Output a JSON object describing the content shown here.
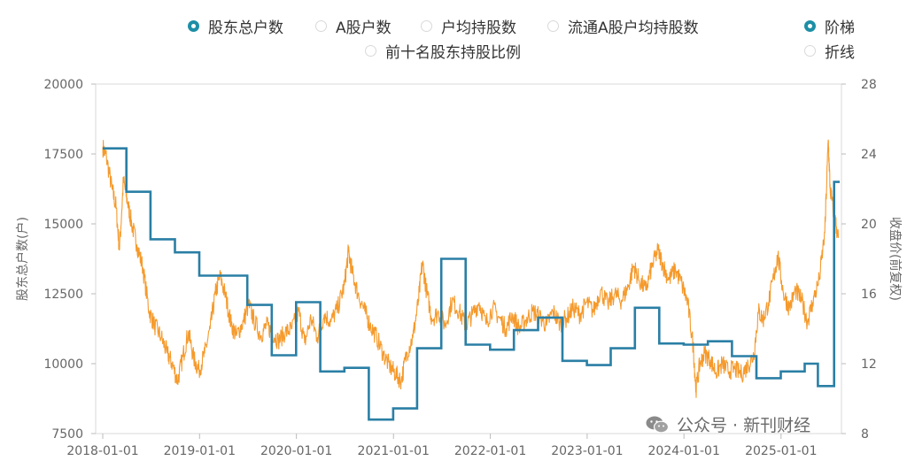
{
  "legend": {
    "series_options": [
      {
        "label": "股东总户数",
        "selected": true
      },
      {
        "label": "A股户数",
        "selected": false
      },
      {
        "label": "户均持股数",
        "selected": false
      },
      {
        "label": "流通A股户均持股数",
        "selected": false
      },
      {
        "label": "前十名股东持股比例",
        "selected": false
      }
    ],
    "style_options": [
      {
        "label": "阶梯",
        "selected": true
      },
      {
        "label": "折线",
        "selected": false
      }
    ]
  },
  "watermark": {
    "text": "公众号 · 新刊财经",
    "icon": "wechat-icon"
  },
  "colors": {
    "holders": "#2a7fa5",
    "price": "#f59a2c",
    "accent": "#1d8fa6"
  },
  "chart_data": {
    "type": "line",
    "xlabel": "",
    "ylabel_left": "股东总户数(户)",
    "ylabel_right": "收盘价(前复权)",
    "x_ticks": [
      "2018-01-01",
      "2019-01-01",
      "2020-01-01",
      "2021-01-01",
      "2022-01-01",
      "2023-01-01",
      "2024-01-01",
      "2025-01-01"
    ],
    "xlim": [
      "2018-01-01",
      "2025-08-10"
    ],
    "y_left": {
      "ylim": [
        7500,
        20000
      ],
      "ticks": [
        "7500",
        "10000",
        "12500",
        "15000",
        "17500",
        "20000"
      ]
    },
    "y_right": {
      "ylim": [
        8,
        28
      ],
      "ticks": [
        "8",
        "12",
        "16",
        "20",
        "24",
        "28"
      ]
    },
    "grid": false,
    "series": [
      {
        "name": "股东总户数",
        "axis": "left",
        "style": "step",
        "points": [
          [
            "2018-01-01",
            17700
          ],
          [
            "2018-03-31",
            16150
          ],
          [
            "2018-06-30",
            14450
          ],
          [
            "2018-09-30",
            13980
          ],
          [
            "2018-12-31",
            13150
          ],
          [
            "2019-06-30",
            12100
          ],
          [
            "2019-09-30",
            10300
          ],
          [
            "2019-12-31",
            12200
          ],
          [
            "2020-03-31",
            9720
          ],
          [
            "2020-06-30",
            9850
          ],
          [
            "2020-09-30",
            8000
          ],
          [
            "2020-12-31",
            8400
          ],
          [
            "2021-03-31",
            10550
          ],
          [
            "2021-06-30",
            13750
          ],
          [
            "2021-09-30",
            10680
          ],
          [
            "2021-12-31",
            10500
          ],
          [
            "2022-03-31",
            11200
          ],
          [
            "2022-06-30",
            11650
          ],
          [
            "2022-09-30",
            10100
          ],
          [
            "2022-12-31",
            9950
          ],
          [
            "2023-03-31",
            10550
          ],
          [
            "2023-06-30",
            12000
          ],
          [
            "2023-09-30",
            10720
          ],
          [
            "2023-12-31",
            10680
          ],
          [
            "2024-03-31",
            10800
          ],
          [
            "2024-06-30",
            10270
          ],
          [
            "2024-09-30",
            9480
          ],
          [
            "2024-12-31",
            9720
          ],
          [
            "2025-03-31",
            10000
          ],
          [
            "2025-05-20",
            9200
          ],
          [
            "2025-07-20",
            16500
          ],
          [
            "2025-08-10",
            16500
          ]
        ]
      },
      {
        "name": "收盘价(前复权)",
        "axis": "right",
        "style": "line",
        "points": [
          [
            "2018-01-01",
            24.4
          ],
          [
            "2018-01-15",
            23.8
          ],
          [
            "2018-02-05",
            22.0
          ],
          [
            "2018-02-20",
            21.0
          ],
          [
            "2018-03-05",
            18.5
          ],
          [
            "2018-03-20",
            22.5
          ],
          [
            "2018-04-05",
            21.2
          ],
          [
            "2018-04-20",
            20.0
          ],
          [
            "2018-05-10",
            18.8
          ],
          [
            "2018-06-01",
            17.5
          ],
          [
            "2018-06-25",
            15.0
          ],
          [
            "2018-07-15",
            14.2
          ],
          [
            "2018-08-10",
            13.5
          ],
          [
            "2018-09-01",
            12.6
          ],
          [
            "2018-09-20",
            12.0
          ],
          [
            "2018-10-10",
            11.0
          ],
          [
            "2018-10-30",
            12.4
          ],
          [
            "2018-11-20",
            13.8
          ],
          [
            "2018-12-10",
            12.3
          ],
          [
            "2018-12-30",
            11.6
          ],
          [
            "2019-01-20",
            12.6
          ],
          [
            "2019-02-10",
            14.0
          ],
          [
            "2019-03-01",
            16.0
          ],
          [
            "2019-03-20",
            17.0
          ],
          [
            "2019-04-10",
            15.8
          ],
          [
            "2019-05-01",
            14.2
          ],
          [
            "2019-05-20",
            13.6
          ],
          [
            "2019-06-15",
            14.4
          ],
          [
            "2019-07-05",
            15.4
          ],
          [
            "2019-07-25",
            14.5
          ],
          [
            "2019-08-20",
            13.6
          ],
          [
            "2019-09-10",
            14.2
          ],
          [
            "2019-10-01",
            13.8
          ],
          [
            "2019-10-25",
            13.3
          ],
          [
            "2019-11-20",
            13.8
          ],
          [
            "2019-12-15",
            14.0
          ],
          [
            "2020-01-10",
            15.0
          ],
          [
            "2020-02-01",
            13.2
          ],
          [
            "2020-02-25",
            14.6
          ],
          [
            "2020-03-20",
            13.5
          ],
          [
            "2020-04-15",
            14.8
          ],
          [
            "2020-05-10",
            14.4
          ],
          [
            "2020-06-05",
            15.2
          ],
          [
            "2020-06-30",
            16.5
          ],
          [
            "2020-07-15",
            18.4
          ],
          [
            "2020-07-30",
            17.2
          ],
          [
            "2020-08-20",
            16.0
          ],
          [
            "2020-09-15",
            15.0
          ],
          [
            "2020-10-05",
            14.2
          ],
          [
            "2020-10-30",
            13.5
          ],
          [
            "2020-11-25",
            12.5
          ],
          [
            "2020-12-20",
            11.8
          ],
          [
            "2021-01-10",
            11.4
          ],
          [
            "2021-01-30",
            11.0
          ],
          [
            "2021-02-20",
            12.6
          ],
          [
            "2021-03-15",
            13.5
          ],
          [
            "2021-04-05",
            15.6
          ],
          [
            "2021-04-20",
            17.8
          ],
          [
            "2021-05-05",
            16.2
          ],
          [
            "2021-05-25",
            14.6
          ],
          [
            "2021-06-20",
            14.9
          ],
          [
            "2021-07-15",
            14.2
          ],
          [
            "2021-08-10",
            15.6
          ],
          [
            "2021-09-05",
            15.0
          ],
          [
            "2021-09-30",
            14.2
          ],
          [
            "2021-10-25",
            14.8
          ],
          [
            "2021-11-20",
            15.5
          ],
          [
            "2021-12-15",
            14.3
          ],
          [
            "2022-01-10",
            15.2
          ],
          [
            "2022-02-05",
            14.6
          ],
          [
            "2022-03-01",
            14.0
          ],
          [
            "2022-03-25",
            14.8
          ],
          [
            "2022-04-20",
            14.0
          ],
          [
            "2022-05-15",
            14.5
          ],
          [
            "2022-06-10",
            15.0
          ],
          [
            "2022-07-05",
            14.7
          ],
          [
            "2022-08-01",
            14.2
          ],
          [
            "2022-08-25",
            15.0
          ],
          [
            "2022-09-20",
            14.3
          ],
          [
            "2022-10-15",
            14.6
          ],
          [
            "2022-11-10",
            15.2
          ],
          [
            "2022-12-05",
            14.8
          ],
          [
            "2022-12-30",
            15.5
          ],
          [
            "2023-01-25",
            15.0
          ],
          [
            "2023-02-20",
            16.2
          ],
          [
            "2023-03-20",
            15.4
          ],
          [
            "2023-04-15",
            16.0
          ],
          [
            "2023-05-10",
            15.6
          ],
          [
            "2023-06-05",
            16.4
          ],
          [
            "2023-06-25",
            17.6
          ],
          [
            "2023-07-15",
            16.8
          ],
          [
            "2023-08-10",
            16.2
          ],
          [
            "2023-09-01",
            17.5
          ],
          [
            "2023-09-25",
            18.5
          ],
          [
            "2023-10-15",
            17.6
          ],
          [
            "2023-11-05",
            16.8
          ],
          [
            "2023-11-30",
            17.4
          ],
          [
            "2023-12-25",
            16.5
          ],
          [
            "2024-01-15",
            15.5
          ],
          [
            "2024-02-05",
            13.0
          ],
          [
            "2024-02-15",
            10.5
          ],
          [
            "2024-03-01",
            12.0
          ],
          [
            "2024-03-20",
            12.6
          ],
          [
            "2024-04-10",
            12.2
          ],
          [
            "2024-05-01",
            11.5
          ],
          [
            "2024-05-25",
            12.0
          ],
          [
            "2024-06-15",
            11.6
          ],
          [
            "2024-07-10",
            11.7
          ],
          [
            "2024-08-05",
            11.4
          ],
          [
            "2024-08-30",
            11.9
          ],
          [
            "2024-09-20",
            12.5
          ],
          [
            "2024-10-08",
            15.0
          ],
          [
            "2024-10-25",
            14.5
          ],
          [
            "2024-11-15",
            15.5
          ],
          [
            "2024-12-05",
            17.0
          ],
          [
            "2024-12-20",
            18.2
          ],
          [
            "2025-01-10",
            16.0
          ],
          [
            "2025-02-01",
            15.2
          ],
          [
            "2025-02-25",
            16.2
          ],
          [
            "2025-03-20",
            15.6
          ],
          [
            "2025-04-10",
            14.4
          ],
          [
            "2025-04-30",
            15.5
          ],
          [
            "2025-05-25",
            16.8
          ],
          [
            "2025-06-15",
            19.5
          ],
          [
            "2025-06-28",
            24.8
          ],
          [
            "2025-07-05",
            22.0
          ],
          [
            "2025-07-20",
            20.5
          ],
          [
            "2025-08-05",
            19.2
          ]
        ]
      }
    ]
  }
}
